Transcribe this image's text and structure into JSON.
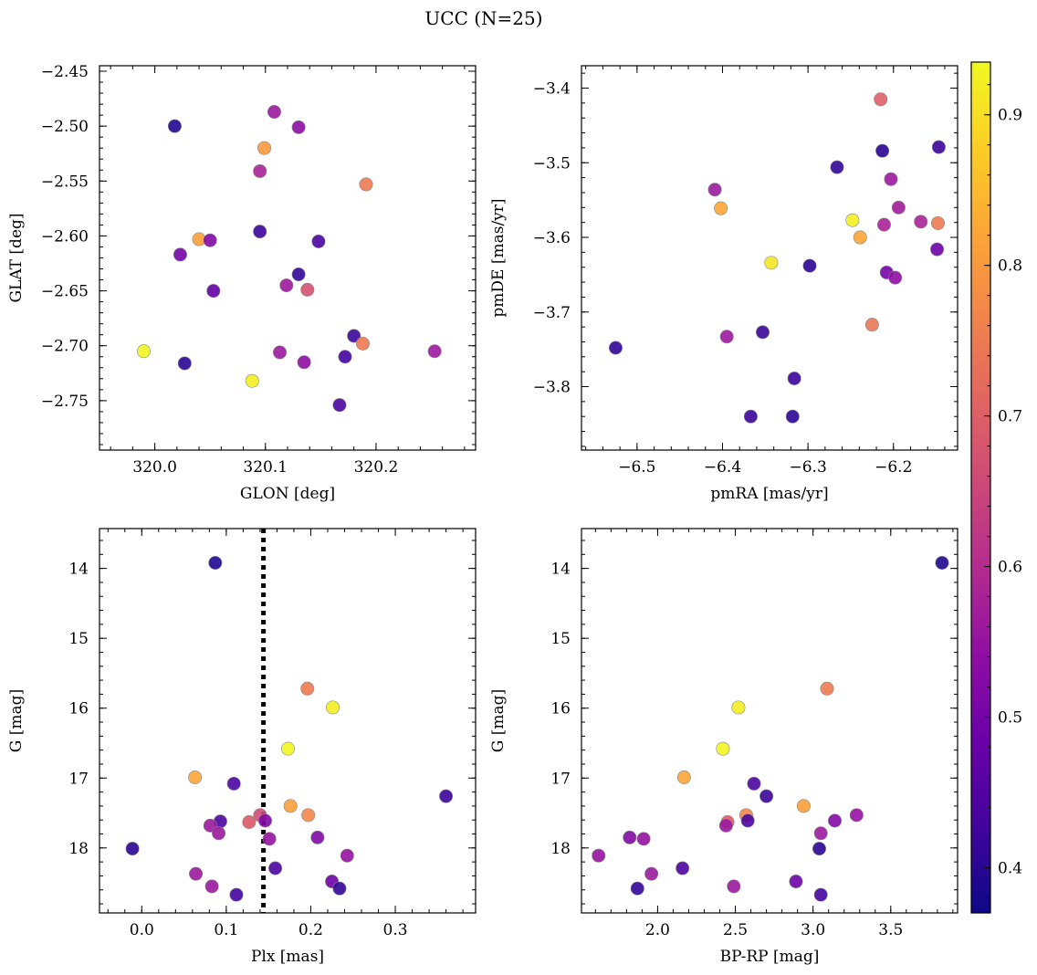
{
  "title": "UCC (N=25)",
  "colors": {
    "marker_edge": "#888888",
    "vline": "#000000",
    "colormap": "plasma"
  },
  "colorbar": {
    "range": [
      0.37,
      0.935
    ],
    "ticks": [
      0.4,
      0.5,
      0.6,
      0.7,
      0.8,
      0.9
    ]
  },
  "chart_data": [
    {
      "id": "gal",
      "type": "scatter",
      "xlabel": "GLON [deg]",
      "ylabel": "GLAT [deg]",
      "xlim": [
        319.95,
        320.29
      ],
      "ylim": [
        -2.795,
        -2.445
      ],
      "xticks": [
        320.0,
        320.1,
        320.2
      ],
      "xtick_labels": [
        "320.0",
        "320.1",
        "320.2"
      ],
      "yticks": [
        -2.45,
        -2.5,
        -2.55,
        -2.6,
        -2.65,
        -2.7,
        -2.75
      ],
      "ytick_labels": [
        "−2.45",
        "−2.50",
        "−2.55",
        "−2.60",
        "−2.65",
        "−2.70",
        "−2.75"
      ],
      "points": [
        {
          "x": 320.018,
          "y": -2.5,
          "c": 0.39
        },
        {
          "x": 320.108,
          "y": -2.487,
          "c": 0.56
        },
        {
          "x": 320.13,
          "y": -2.501,
          "c": 0.54
        },
        {
          "x": 320.099,
          "y": -2.52,
          "c": 0.8
        },
        {
          "x": 320.095,
          "y": -2.541,
          "c": 0.58
        },
        {
          "x": 320.191,
          "y": -2.553,
          "c": 0.75
        },
        {
          "x": 320.04,
          "y": -2.603,
          "c": 0.81
        },
        {
          "x": 320.05,
          "y": -2.604,
          "c": 0.52
        },
        {
          "x": 320.095,
          "y": -2.596,
          "c": 0.42
        },
        {
          "x": 320.148,
          "y": -2.605,
          "c": 0.44
        },
        {
          "x": 320.023,
          "y": -2.617,
          "c": 0.5
        },
        {
          "x": 320.13,
          "y": -2.635,
          "c": 0.41
        },
        {
          "x": 320.053,
          "y": -2.65,
          "c": 0.47
        },
        {
          "x": 320.119,
          "y": -2.645,
          "c": 0.56
        },
        {
          "x": 320.138,
          "y": -2.649,
          "c": 0.67
        },
        {
          "x": 319.99,
          "y": -2.705,
          "c": 0.93
        },
        {
          "x": 320.027,
          "y": -2.716,
          "c": 0.4
        },
        {
          "x": 320.088,
          "y": -2.732,
          "c": 0.92
        },
        {
          "x": 320.113,
          "y": -2.706,
          "c": 0.56
        },
        {
          "x": 320.135,
          "y": -2.715,
          "c": 0.54
        },
        {
          "x": 320.18,
          "y": -2.691,
          "c": 0.42
        },
        {
          "x": 320.172,
          "y": -2.71,
          "c": 0.43
        },
        {
          "x": 320.188,
          "y": -2.698,
          "c": 0.75
        },
        {
          "x": 320.167,
          "y": -2.754,
          "c": 0.44
        },
        {
          "x": 320.253,
          "y": -2.705,
          "c": 0.56
        }
      ]
    },
    {
      "id": "pm",
      "type": "scatter",
      "xlabel": "pmRA [mas/yr]",
      "ylabel": "pmDE [mas/yr]",
      "xlim": [
        -6.565,
        -6.125
      ],
      "ylim": [
        -3.885,
        -3.37
      ],
      "xticks": [
        -6.5,
        -6.4,
        -6.3,
        -6.2
      ],
      "xtick_labels": [
        "−6.5",
        "−6.4",
        "−6.3",
        "−6.2"
      ],
      "yticks": [
        -3.4,
        -3.5,
        -3.6,
        -3.7,
        -3.8
      ],
      "ytick_labels": [
        "−3.4",
        "−3.5",
        "−3.6",
        "−3.7",
        "−3.8"
      ],
      "points": [
        {
          "x": -6.215,
          "y": -3.415,
          "c": 0.7
        },
        {
          "x": -6.213,
          "y": -3.484,
          "c": 0.4
        },
        {
          "x": -6.147,
          "y": -3.479,
          "c": 0.42
        },
        {
          "x": -6.266,
          "y": -3.506,
          "c": 0.41
        },
        {
          "x": -6.203,
          "y": -3.522,
          "c": 0.56
        },
        {
          "x": -6.409,
          "y": -3.536,
          "c": 0.56
        },
        {
          "x": -6.402,
          "y": -3.561,
          "c": 0.82
        },
        {
          "x": -6.194,
          "y": -3.56,
          "c": 0.57
        },
        {
          "x": -6.211,
          "y": -3.583,
          "c": 0.58
        },
        {
          "x": -6.248,
          "y": -3.577,
          "c": 0.92
        },
        {
          "x": -6.168,
          "y": -3.579,
          "c": 0.58
        },
        {
          "x": -6.148,
          "y": -3.581,
          "c": 0.75
        },
        {
          "x": -6.239,
          "y": -3.6,
          "c": 0.82
        },
        {
          "x": -6.149,
          "y": -3.616,
          "c": 0.49
        },
        {
          "x": -6.343,
          "y": -3.634,
          "c": 0.91
        },
        {
          "x": -6.298,
          "y": -3.638,
          "c": 0.4
        },
        {
          "x": -6.208,
          "y": -3.647,
          "c": 0.5
        },
        {
          "x": -6.198,
          "y": -3.654,
          "c": 0.54
        },
        {
          "x": -6.225,
          "y": -3.717,
          "c": 0.74
        },
        {
          "x": -6.395,
          "y": -3.733,
          "c": 0.56
        },
        {
          "x": -6.353,
          "y": -3.727,
          "c": 0.42
        },
        {
          "x": -6.525,
          "y": -3.748,
          "c": 0.41
        },
        {
          "x": -6.316,
          "y": -3.789,
          "c": 0.42
        },
        {
          "x": -6.367,
          "y": -3.84,
          "c": 0.42
        },
        {
          "x": -6.318,
          "y": -3.84,
          "c": 0.4
        }
      ]
    },
    {
      "id": "plx",
      "type": "scatter",
      "xlabel": "Plx [mas]",
      "ylabel": "G [mag]",
      "xlim": [
        -0.05,
        0.395
      ],
      "ylim": [
        18.93,
        13.43
      ],
      "xticks": [
        0.0,
        0.1,
        0.2,
        0.3
      ],
      "xtick_labels": [
        "0.0",
        "0.1",
        "0.2",
        "0.3"
      ],
      "yticks": [
        14,
        15,
        16,
        17,
        18
      ],
      "ytick_labels": [
        "14",
        "15",
        "16",
        "17",
        "18"
      ],
      "vline": 0.144,
      "points": [
        {
          "x": 0.087,
          "y": 13.92,
          "c": 0.39
        },
        {
          "x": 0.196,
          "y": 15.72,
          "c": 0.75
        },
        {
          "x": 0.226,
          "y": 15.99,
          "c": 0.92
        },
        {
          "x": 0.173,
          "y": 16.58,
          "c": 0.93
        },
        {
          "x": 0.063,
          "y": 16.99,
          "c": 0.82
        },
        {
          "x": 0.109,
          "y": 17.08,
          "c": 0.44
        },
        {
          "x": 0.36,
          "y": 17.26,
          "c": 0.42
        },
        {
          "x": 0.176,
          "y": 17.4,
          "c": 0.81
        },
        {
          "x": 0.197,
          "y": 17.53,
          "c": 0.77
        },
        {
          "x": 0.14,
          "y": 17.53,
          "c": 0.66
        },
        {
          "x": 0.146,
          "y": 17.61,
          "c": 0.52
        },
        {
          "x": 0.127,
          "y": 17.63,
          "c": 0.69
        },
        {
          "x": 0.093,
          "y": 17.62,
          "c": 0.44
        },
        {
          "x": 0.081,
          "y": 17.68,
          "c": 0.56
        },
        {
          "x": 0.091,
          "y": 17.79,
          "c": 0.56
        },
        {
          "x": 0.151,
          "y": 17.87,
          "c": 0.55
        },
        {
          "x": 0.208,
          "y": 17.85,
          "c": 0.52
        },
        {
          "x": -0.011,
          "y": 18.01,
          "c": 0.4
        },
        {
          "x": 0.243,
          "y": 18.11,
          "c": 0.55
        },
        {
          "x": 0.158,
          "y": 18.29,
          "c": 0.44
        },
        {
          "x": 0.064,
          "y": 18.37,
          "c": 0.56
        },
        {
          "x": 0.225,
          "y": 18.48,
          "c": 0.49
        },
        {
          "x": 0.083,
          "y": 18.55,
          "c": 0.56
        },
        {
          "x": 0.234,
          "y": 18.58,
          "c": 0.41
        },
        {
          "x": 0.112,
          "y": 18.67,
          "c": 0.43
        }
      ]
    },
    {
      "id": "cmd",
      "type": "scatter",
      "xlabel": "BP-RP [mag]",
      "ylabel": "G [mag]",
      "xlim": [
        1.51,
        3.93
      ],
      "ylim": [
        18.93,
        13.43
      ],
      "xticks": [
        2.0,
        2.5,
        3.0,
        3.5
      ],
      "xtick_labels": [
        "2.0",
        "2.5",
        "3.0",
        "3.5"
      ],
      "yticks": [
        14,
        15,
        16,
        17,
        18
      ],
      "ytick_labels": [
        "14",
        "15",
        "16",
        "17",
        "18"
      ],
      "points": [
        {
          "x": 3.83,
          "y": 13.92,
          "c": 0.39
        },
        {
          "x": 3.09,
          "y": 15.72,
          "c": 0.75
        },
        {
          "x": 2.52,
          "y": 15.99,
          "c": 0.92
        },
        {
          "x": 2.42,
          "y": 16.58,
          "c": 0.93
        },
        {
          "x": 2.17,
          "y": 16.99,
          "c": 0.82
        },
        {
          "x": 2.62,
          "y": 17.08,
          "c": 0.44
        },
        {
          "x": 2.7,
          "y": 17.26,
          "c": 0.42
        },
        {
          "x": 2.94,
          "y": 17.4,
          "c": 0.81
        },
        {
          "x": 2.57,
          "y": 17.53,
          "c": 0.77
        },
        {
          "x": 3.28,
          "y": 17.53,
          "c": 0.55
        },
        {
          "x": 2.58,
          "y": 17.61,
          "c": 0.44
        },
        {
          "x": 3.14,
          "y": 17.61,
          "c": 0.52
        },
        {
          "x": 2.45,
          "y": 17.63,
          "c": 0.69
        },
        {
          "x": 2.44,
          "y": 17.68,
          "c": 0.56
        },
        {
          "x": 3.05,
          "y": 17.79,
          "c": 0.56
        },
        {
          "x": 1.82,
          "y": 17.85,
          "c": 0.52
        },
        {
          "x": 1.91,
          "y": 17.87,
          "c": 0.55
        },
        {
          "x": 3.04,
          "y": 18.01,
          "c": 0.4
        },
        {
          "x": 1.62,
          "y": 18.11,
          "c": 0.55
        },
        {
          "x": 2.16,
          "y": 18.29,
          "c": 0.44
        },
        {
          "x": 1.96,
          "y": 18.37,
          "c": 0.56
        },
        {
          "x": 2.89,
          "y": 18.48,
          "c": 0.49
        },
        {
          "x": 2.49,
          "y": 18.55,
          "c": 0.56
        },
        {
          "x": 1.87,
          "y": 18.58,
          "c": 0.41
        },
        {
          "x": 3.05,
          "y": 18.67,
          "c": 0.43
        }
      ]
    }
  ]
}
